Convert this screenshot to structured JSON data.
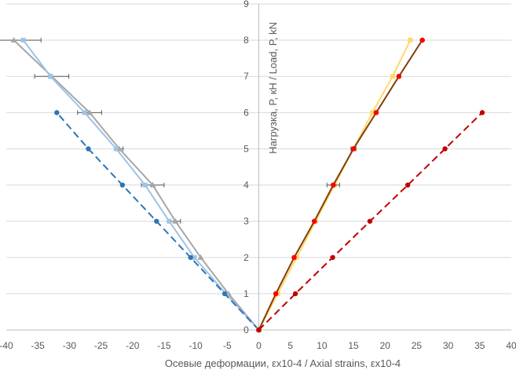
{
  "chart_data": {
    "type": "scatter",
    "xlabel": "Осевые деформации, εx10-4 / Axial strains, εx10-4",
    "ylabel": "Нагрузка, P, кН / Load, P, kN",
    "xlim": [
      -40,
      40
    ],
    "ylim": [
      0,
      9
    ],
    "x_ticks": [
      "-40",
      "-35",
      "-30",
      "-25",
      "-20",
      "-15",
      "-10",
      "-5",
      "0",
      "5",
      "10",
      "15",
      "20",
      "25",
      "30",
      "35",
      "40"
    ],
    "y_ticks": [
      "0",
      "1",
      "2",
      "3",
      "4",
      "5",
      "6",
      "7",
      "8",
      "9"
    ],
    "grid": "horizontal",
    "legend": "none",
    "series": [
      {
        "color": "#a6a6a6",
        "style": "solid",
        "marker": "triangle",
        "x": [
          0,
          -4.8,
          -9.2,
          -13.2,
          -16.8,
          -22.1,
          -26.8,
          -32.8,
          -38.8
        ],
        "y": [
          0,
          1,
          2,
          3,
          4,
          5,
          6,
          7,
          8
        ],
        "x_error": [
          0,
          0,
          0,
          0.8,
          1.8,
          0.6,
          1.9,
          2.7,
          4.3
        ]
      },
      {
        "color": "#9dc3e6",
        "style": "solid",
        "marker": "square",
        "x": [
          0,
          -5.2,
          -10.2,
          -14.2,
          -18.0,
          -22.6,
          -27.6,
          -33.0,
          -37.3
        ],
        "y": [
          0,
          1,
          2,
          3,
          4,
          5,
          6,
          7,
          8
        ]
      },
      {
        "color": "#2e75b6",
        "style": "dashed",
        "marker": "circle",
        "x": [
          0,
          -5.4,
          -10.8,
          -16.2,
          -21.6,
          -27.0,
          -32.0
        ],
        "y": [
          0,
          1,
          2,
          3,
          4,
          5,
          6
        ]
      },
      {
        "color": "#ffd966",
        "style": "solid",
        "marker": "square",
        "x": [
          0,
          3.0,
          6.0,
          9.0,
          12.0,
          15.0,
          18.0,
          21.2,
          24.0
        ],
        "y": [
          0,
          1,
          2,
          3,
          4,
          5,
          6,
          7,
          8
        ]
      },
      {
        "color": "#833c0b",
        "style": "solid",
        "marker": "circle",
        "x": [
          0,
          2.7,
          5.6,
          8.8,
          11.8,
          15.0,
          18.6,
          22.2,
          25.9
        ],
        "y": [
          0,
          1,
          2,
          3,
          4,
          5,
          6,
          7,
          8
        ],
        "x_error": [
          0,
          0,
          0,
          0,
          1.0,
          0.4,
          0,
          0,
          0
        ]
      },
      {
        "color": "#ff0000",
        "style": "none",
        "marker": "circle",
        "x": [
          0,
          2.7,
          5.6,
          8.8,
          11.8,
          15.0,
          18.6,
          22.2,
          25.9
        ],
        "y": [
          0,
          1,
          2,
          3,
          4,
          5,
          6,
          7,
          8
        ]
      },
      {
        "color": "#c00000",
        "style": "dashed",
        "marker": "circle",
        "x": [
          0,
          5.8,
          11.7,
          17.6,
          23.6,
          29.5,
          35.4
        ],
        "y": [
          0,
          1,
          2,
          3,
          4,
          5,
          6
        ]
      }
    ]
  }
}
